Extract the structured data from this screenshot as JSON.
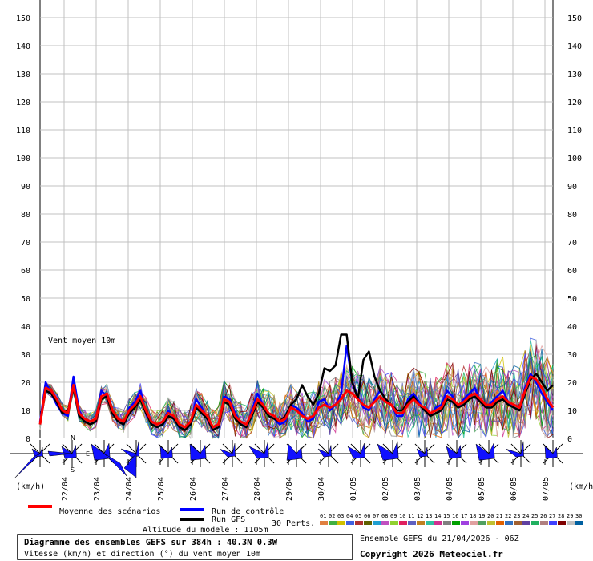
{
  "chart_data": {
    "type": "line",
    "label": "Vent moyen 10m",
    "unit": "(km/h)",
    "ylim": [
      0,
      155
    ],
    "yticks": [
      0,
      10,
      20,
      30,
      40,
      50,
      60,
      70,
      80,
      90,
      100,
      110,
      120,
      130,
      140,
      150
    ],
    "x_range_hours": [
      0,
      384
    ],
    "date_ticks": [
      {
        "label": "22/04",
        "h": 18
      },
      {
        "label": "23/04",
        "h": 42
      },
      {
        "label": "24/04",
        "h": 66
      },
      {
        "label": "25/04",
        "h": 90
      },
      {
        "label": "26/04",
        "h": 114
      },
      {
        "label": "27/04",
        "h": 138
      },
      {
        "label": "28/04",
        "h": 162
      },
      {
        "label": "29/04",
        "h": 186
      },
      {
        "label": "30/04",
        "h": 210
      },
      {
        "label": "01/05",
        "h": 234
      },
      {
        "label": "02/05",
        "h": 258
      },
      {
        "label": "03/05",
        "h": 282
      },
      {
        "label": "04/05",
        "h": 306
      },
      {
        "label": "05/05",
        "h": 330
      },
      {
        "label": "06/05",
        "h": 354
      },
      {
        "label": "07/05",
        "h": 378
      }
    ],
    "grid": true,
    "series": [
      {
        "name": "Moyenne des scénarios",
        "color": "#ff0000",
        "values": [
          5,
          18,
          17,
          14,
          10,
          9,
          19,
          9,
          7,
          6,
          7,
          15,
          16,
          10,
          7,
          6,
          10,
          12,
          15,
          10,
          6,
          5,
          6,
          9,
          8,
          5,
          4,
          6,
          12,
          10,
          8,
          4,
          5,
          14,
          13,
          8,
          6,
          5,
          9,
          14,
          12,
          9,
          8,
          6,
          7,
          11,
          10,
          8,
          7,
          8,
          11,
          12,
          11,
          12,
          14,
          17,
          16,
          14,
          12,
          11,
          13,
          15,
          13,
          12,
          9,
          9,
          12,
          14,
          12,
          11,
          9,
          10,
          11,
          15,
          14,
          12,
          13,
          15,
          16,
          14,
          12,
          12,
          14,
          15,
          13,
          12,
          11,
          17,
          22,
          21,
          18,
          14,
          11
        ]
      },
      {
        "name": "Run de contrôle",
        "color": "#0000ff",
        "values": [
          6,
          20,
          16,
          12,
          9,
          8,
          22,
          10,
          6,
          5,
          6,
          17,
          15,
          9,
          6,
          5,
          11,
          13,
          17,
          9,
          5,
          4,
          5,
          10,
          7,
          4,
          3,
          5,
          14,
          11,
          7,
          3,
          4,
          15,
          14,
          9,
          5,
          4,
          10,
          16,
          12,
          8,
          7,
          5,
          6,
          12,
          11,
          9,
          6,
          7,
          13,
          14,
          10,
          12,
          16,
          33,
          20,
          15,
          11,
          10,
          14,
          17,
          14,
          12,
          8,
          8,
          14,
          16,
          13,
          10,
          8,
          11,
          12,
          17,
          15,
          11,
          14,
          16,
          18,
          13,
          11,
          13,
          15,
          17,
          13,
          11,
          10,
          18,
          23,
          20,
          16,
          13,
          10
        ]
      },
      {
        "name": "Run GFS",
        "color": "#000000",
        "values": [
          5,
          17,
          16,
          13,
          9,
          10,
          18,
          8,
          6,
          5,
          6,
          14,
          15,
          9,
          6,
          5,
          9,
          11,
          14,
          9,
          5,
          4,
          5,
          8,
          7,
          4,
          3,
          5,
          11,
          9,
          7,
          3,
          4,
          13,
          12,
          7,
          5,
          4,
          8,
          13,
          11,
          8,
          7,
          6,
          8,
          12,
          14,
          19,
          15,
          12,
          16,
          25,
          24,
          26,
          37,
          37,
          20,
          14,
          28,
          31,
          22,
          17,
          14,
          12,
          10,
          10,
          13,
          15,
          12,
          10,
          8,
          9,
          10,
          14,
          13,
          11,
          12,
          14,
          15,
          13,
          11,
          11,
          13,
          14,
          12,
          11,
          10,
          16,
          21,
          23,
          20,
          17,
          19
        ]
      }
    ],
    "perturbation_count": 30
  },
  "legend": {
    "mean": "Moyenne des scénarios",
    "control": "Run de contrôle",
    "gfs": "Run GFS",
    "perts": "30 Perts.",
    "pert_labels": [
      "01",
      "02",
      "03",
      "04",
      "05",
      "06",
      "07",
      "08",
      "09",
      "10",
      "11",
      "12",
      "13",
      "14",
      "15",
      "16",
      "17",
      "18",
      "19",
      "20",
      "21",
      "22",
      "23",
      "24",
      "25",
      "26",
      "27",
      "28",
      "29",
      "30"
    ],
    "pert_colors": [
      "#e08040",
      "#40b040",
      "#d0c000",
      "#4060e0",
      "#b03030",
      "#606000",
      "#20a0d0",
      "#c050c0",
      "#90d030",
      "#e02060",
      "#6060c0",
      "#c08020",
      "#30c0a0",
      "#d03090",
      "#808080",
      "#00a000",
      "#a040e0",
      "#e0a0a0",
      "#50a060",
      "#c0c030",
      "#e06000",
      "#3070c0",
      "#a06030",
      "#6040a0",
      "#20b060",
      "#b08080",
      "#4040ff",
      "#800000",
      "#c0c0c0",
      "#0060a0"
    ]
  },
  "wind_roses": {
    "north": "N",
    "south": "S",
    "east": "E"
  },
  "footer": {
    "altitude": "Altitude du modele : 1105m",
    "title": "Diagramme des ensembles GEFS sur 384h : 40.3N 0.3W",
    "subtitle": "Vitesse (km/h) et direction (°) du vent moyen 10m",
    "run": "Ensemble GEFS du 21/04/2026 - 06Z",
    "copyright": "Copyright 2026 Meteociel.fr"
  }
}
